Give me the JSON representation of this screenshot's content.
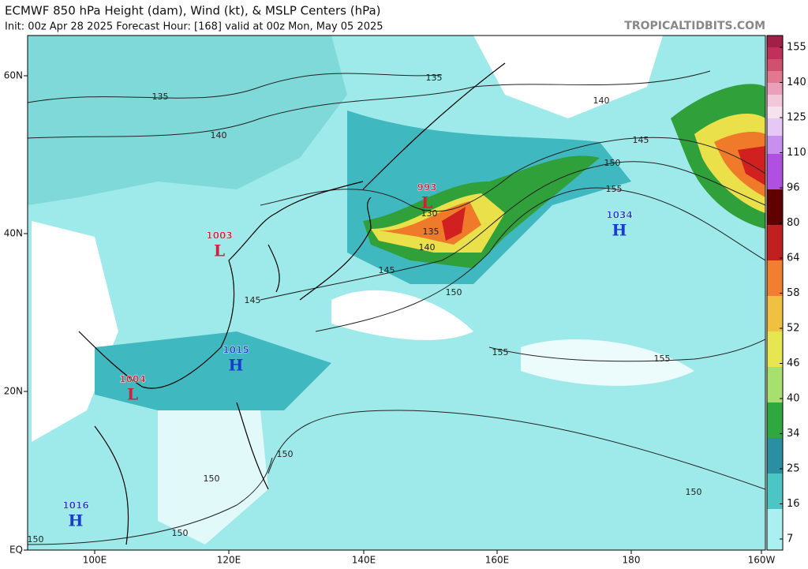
{
  "header": {
    "title": "ECMWF 850 hPa Height (dam), Wind (kt), & MSLP Centers (hPa)",
    "subtitle": "Init: 00z Apr 28 2025   Forecast Hour: [168]   valid at 00z Mon, May 05 2025",
    "site": "TROPICALTIDBITS.COM"
  },
  "colorbar": {
    "ticks": [
      155,
      140,
      125,
      110,
      96,
      80,
      64,
      58,
      52,
      46,
      40,
      34,
      25,
      16,
      7
    ]
  },
  "axes": {
    "lon": [
      "100E",
      "120E",
      "140E",
      "160E",
      "180",
      "160W"
    ],
    "lat": [
      "60N",
      "40N",
      "20N",
      "EQ"
    ]
  },
  "centers": [
    {
      "pressure": "1003",
      "kind": "L"
    },
    {
      "pressure": "993",
      "kind": "L"
    },
    {
      "pressure": "1034",
      "kind": "H"
    },
    {
      "pressure": "1015",
      "kind": "H"
    },
    {
      "pressure": "1004",
      "kind": "L"
    },
    {
      "pressure": "1016",
      "kind": "H"
    }
  ],
  "contour_labels": [
    "135",
    "140",
    "135",
    "140",
    "145",
    "150",
    "155",
    "130",
    "135",
    "140",
    "145",
    "145",
    "150",
    "155",
    "155",
    "150",
    "150",
    "150",
    "150",
    "150"
  ]
}
